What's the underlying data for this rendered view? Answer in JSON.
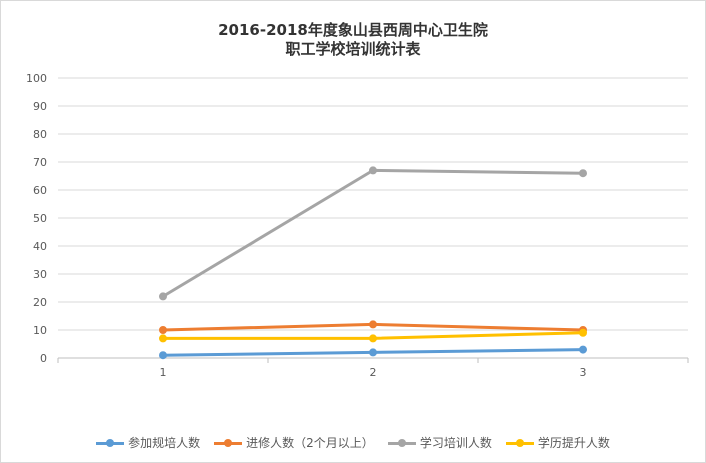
{
  "chart_data": {
    "type": "line",
    "title_lines": [
      "2016-2018年度象山县西周中心卫生院",
      "职工学校培训统计表"
    ],
    "categories": [
      "1",
      "2",
      "3"
    ],
    "y_ticks": [
      "0",
      "10",
      "20",
      "30",
      "40",
      "50",
      "60",
      "70",
      "80",
      "90",
      "100"
    ],
    "ylim": [
      0,
      100
    ],
    "grid": true,
    "legend_position": "bottom",
    "series": [
      {
        "name": "参加规培人数",
        "color": "#5b9bd5",
        "values": [
          1,
          2,
          3
        ]
      },
      {
        "name": "进修人数（2个月以上）",
        "color": "#ed7d31",
        "values": [
          10,
          12,
          10
        ]
      },
      {
        "name": "学习培训人数",
        "color": "#a5a5a5",
        "values": [
          22,
          67,
          66
        ]
      },
      {
        "name": "学历提升人数",
        "color": "#ffc000",
        "values": [
          7,
          7,
          9
        ]
      }
    ]
  }
}
